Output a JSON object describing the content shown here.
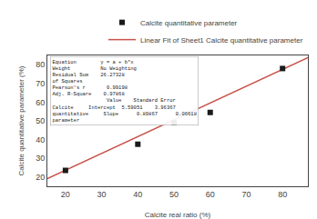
{
  "chart_data": {
    "type": "scatter",
    "xlabel": "Calcite real ratio (%)",
    "ylabel": "Calcite quantitative parameter (%)",
    "series": [
      {
        "name": "Linear Fit of Sheet1 Calcite quantitative parameter",
        "type": "line",
        "color": "#c8524a",
        "line_style": "solid",
        "x": [
          15,
          87
        ],
        "values": [
          19.07056,
          83.7748
        ]
      },
      {
        "name": "Calcite quantitative parameter",
        "type": "scatter",
        "color": "#1a1a1a",
        "marker": "square",
        "x": [
          20,
          40,
          50,
          60,
          80
        ],
        "values": [
          23.5,
          37.5,
          49.0,
          54.5,
          78.0
        ]
      }
    ],
    "xlim": [
      15,
      87
    ],
    "ylim": [
      15,
      85
    ],
    "xticks": [
      20,
      30,
      40,
      50,
      60,
      70,
      80
    ],
    "yticks": [
      20,
      30,
      40,
      50,
      60,
      70,
      80
    ],
    "grid": false,
    "legend": "upper right",
    "annotations": [
      "Equation        y = a + b*x",
      "Weight          No Weighting",
      "Residual Sum    26.27328",
      "of Squares",
      "Pearson's r       0.99198",
      "Adj. R-Square    0.97868",
      "                  Value    Standard Error",
      "Calcite     Intercept  5.59051    3.96367",
      "quantitative     Slope      0.89867      0.06618",
      "parameter"
    ]
  }
}
